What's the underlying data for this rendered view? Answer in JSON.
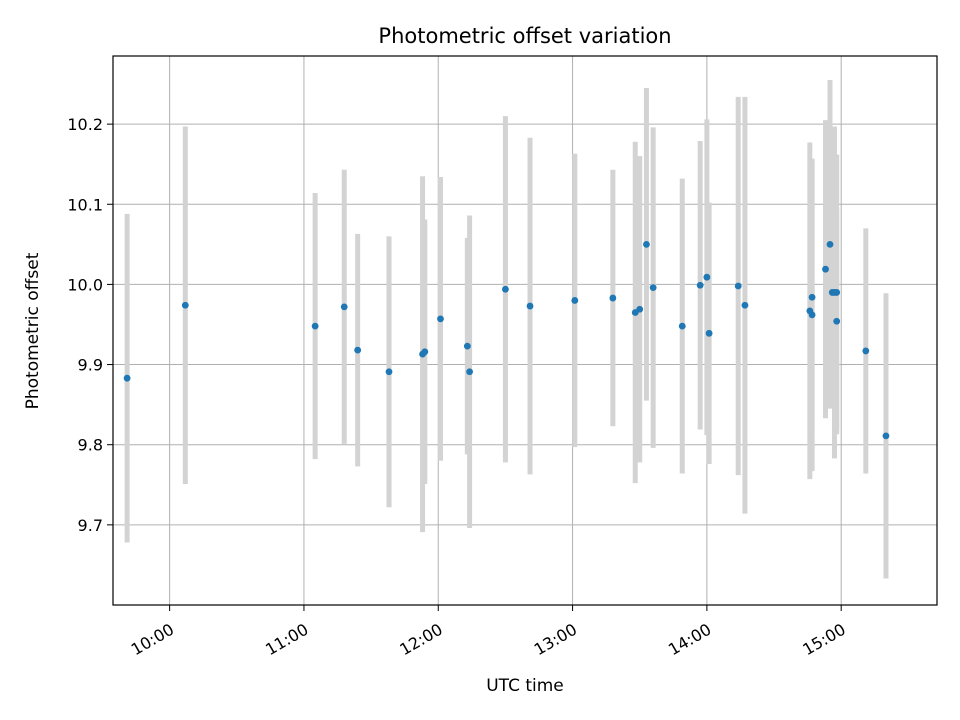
{
  "chart_data": {
    "type": "scatter",
    "title": "Photometric offset variation",
    "xlabel": "UTC time",
    "ylabel": "Photometric offset",
    "x_tick_labels": [
      "10:00",
      "11:00",
      "12:00",
      "13:00",
      "14:00",
      "15:00"
    ],
    "x_tick_values": [
      600,
      660,
      720,
      780,
      840,
      900
    ],
    "y_tick_labels": [
      "9.7",
      "9.8",
      "9.9",
      "10.0",
      "10.1",
      "10.2"
    ],
    "y_tick_values": [
      9.7,
      9.8,
      9.9,
      10.0,
      10.1,
      10.2
    ],
    "xlim_minutes": [
      574.7,
      942.8
    ],
    "ylim": [
      9.6,
      10.285
    ],
    "grid": true,
    "marker_color": "#1f77b4",
    "errorbar_color": "#d3d3d3",
    "series": [
      {
        "points": [
          {
            "x": "09:41",
            "y": 9.883,
            "err": 0.205
          },
          {
            "x": "10:07",
            "y": 9.974,
            "err": 0.223
          },
          {
            "x": "11:05",
            "y": 9.948,
            "err": 0.166
          },
          {
            "x": "11:18",
            "y": 9.972,
            "err": 0.171
          },
          {
            "x": "11:24",
            "y": 9.918,
            "err": 0.145
          },
          {
            "x": "11:38",
            "y": 9.891,
            "err": 0.169
          },
          {
            "x": "11:53",
            "y": 9.913,
            "err": 0.222
          },
          {
            "x": "11:54",
            "y": 9.916,
            "err": 0.165
          },
          {
            "x": "12:01",
            "y": 9.957,
            "err": 0.177
          },
          {
            "x": "12:13",
            "y": 9.923,
            "err": 0.135
          },
          {
            "x": "12:14",
            "y": 9.891,
            "err": 0.195
          },
          {
            "x": "12:30",
            "y": 9.994,
            "err": 0.216
          },
          {
            "x": "12:41",
            "y": 9.973,
            "err": 0.21
          },
          {
            "x": "13:01",
            "y": 9.98,
            "err": 0.183
          },
          {
            "x": "13:18",
            "y": 9.983,
            "err": 0.16
          },
          {
            "x": "13:28",
            "y": 9.965,
            "err": 0.213
          },
          {
            "x": "13:30",
            "y": 9.969,
            "err": 0.191
          },
          {
            "x": "13:33",
            "y": 10.05,
            "err": 0.195
          },
          {
            "x": "13:36",
            "y": 9.996,
            "err": 0.2
          },
          {
            "x": "13:49",
            "y": 9.948,
            "err": 0.184
          },
          {
            "x": "13:57",
            "y": 9.999,
            "err": 0.18
          },
          {
            "x": "14:00",
            "y": 10.009,
            "err": 0.197
          },
          {
            "x": "14:01",
            "y": 9.939,
            "err": 0.163
          },
          {
            "x": "14:14",
            "y": 9.998,
            "err": 0.236
          },
          {
            "x": "14:17",
            "y": 9.974,
            "err": 0.26
          },
          {
            "x": "14:46",
            "y": 9.967,
            "err": 0.21
          },
          {
            "x": "14:47",
            "y": 9.962,
            "err": 0.195
          },
          {
            "x": "14:47",
            "y": 9.984,
            "err": 0.17
          },
          {
            "x": "14:53",
            "y": 10.019,
            "err": 0.186
          },
          {
            "x": "14:55",
            "y": 10.05,
            "err": 0.205
          },
          {
            "x": "14:56",
            "y": 9.99,
            "err": 0.143
          },
          {
            "x": "14:57",
            "y": 9.99,
            "err": 0.207
          },
          {
            "x": "14:58",
            "y": 9.954,
            "err": 0.141
          },
          {
            "x": "14:58",
            "y": 9.99,
            "err": 0.172
          },
          {
            "x": "15:11",
            "y": 9.917,
            "err": 0.153
          },
          {
            "x": "15:20",
            "y": 9.811,
            "err": 0.178
          }
        ]
      }
    ]
  }
}
